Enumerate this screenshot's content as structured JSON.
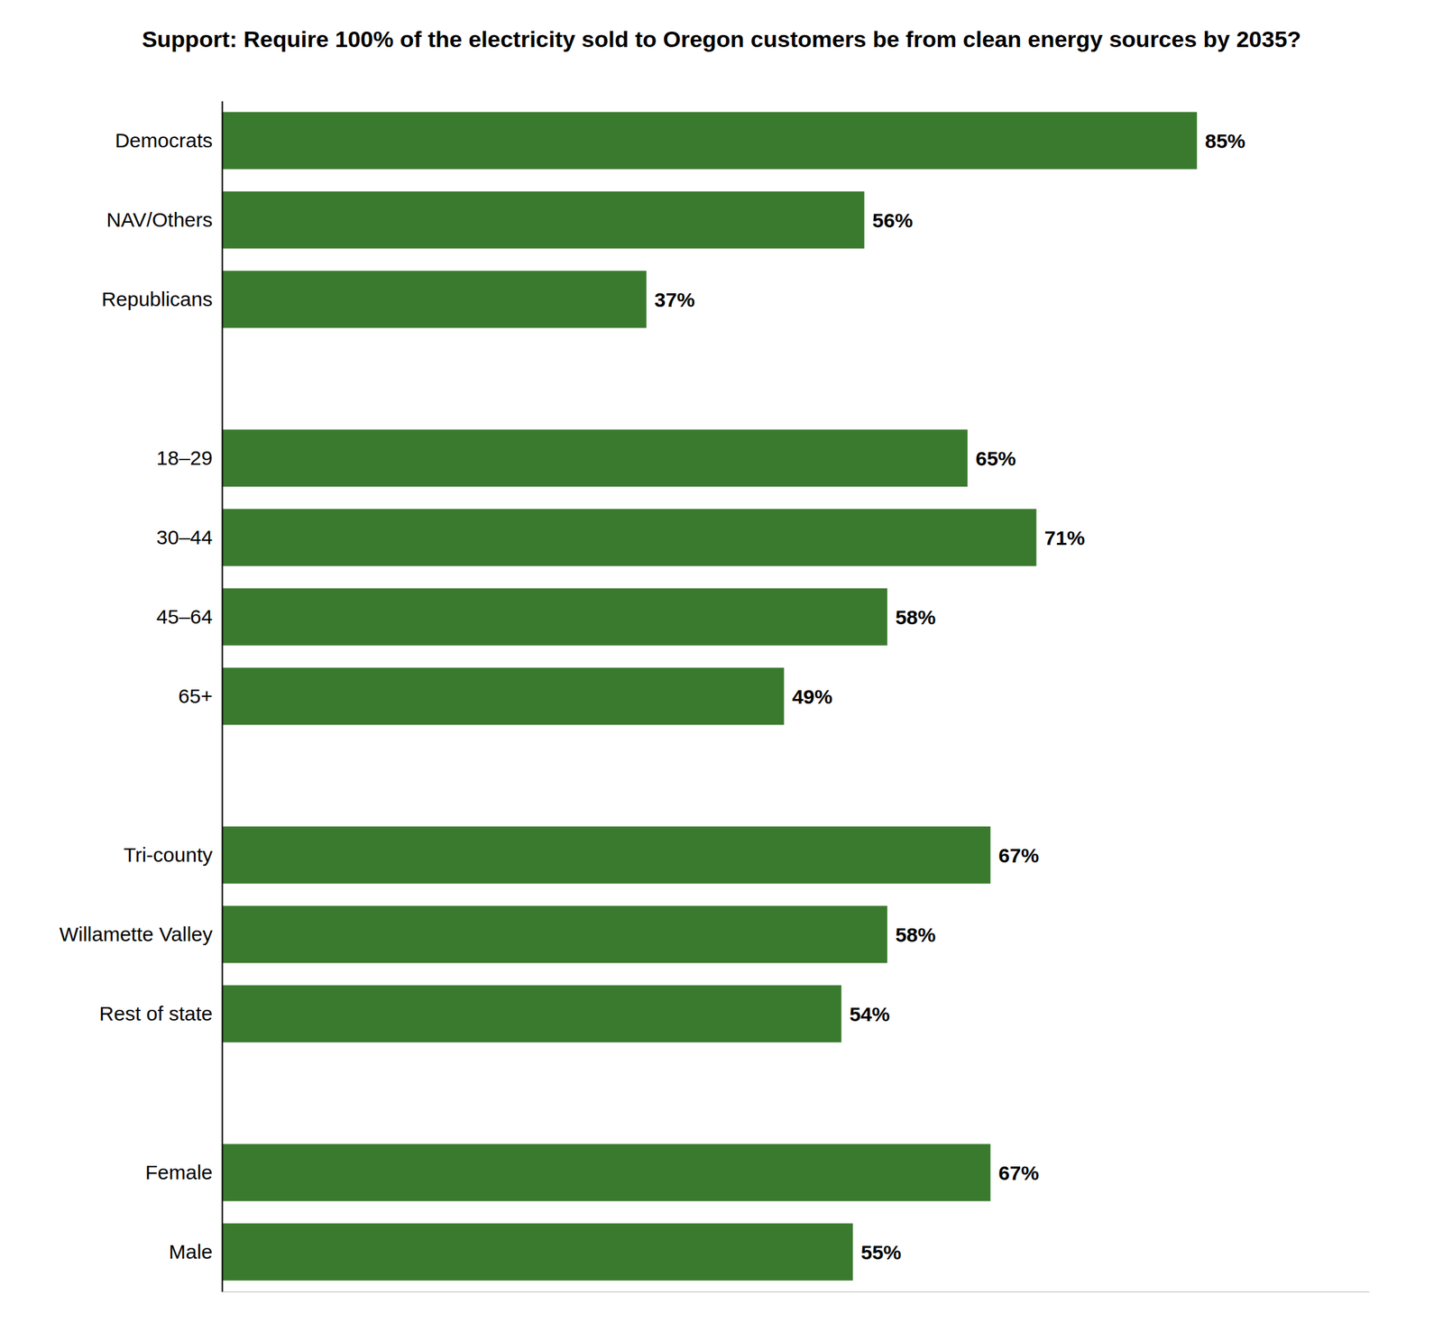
{
  "chart_data": {
    "type": "bar",
    "orientation": "horizontal",
    "title": "Support: Require 100% of the electricity sold to Oregon customers be from clean energy sources by 2035?",
    "categories": [
      "Democrats",
      "NAV/Others",
      "Republicans",
      null,
      "18–29",
      "30–44",
      "45–64",
      "65+",
      null,
      "Tri-county",
      "Willamette Valley",
      "Rest of state",
      null,
      "Female",
      "Male"
    ],
    "values": [
      85,
      56,
      37,
      null,
      65,
      71,
      58,
      49,
      null,
      67,
      58,
      54,
      null,
      67,
      55
    ],
    "value_labels": [
      "85%",
      "56%",
      "37%",
      null,
      "65%",
      "71%",
      "58%",
      "49%",
      null,
      "67%",
      "58%",
      "54%",
      null,
      "67%",
      "55%"
    ],
    "color": "#3a7a2e",
    "xlim": [
      0,
      100
    ],
    "xticks": [],
    "data_labels": true,
    "tick_labels": "y",
    "grid": false
  }
}
